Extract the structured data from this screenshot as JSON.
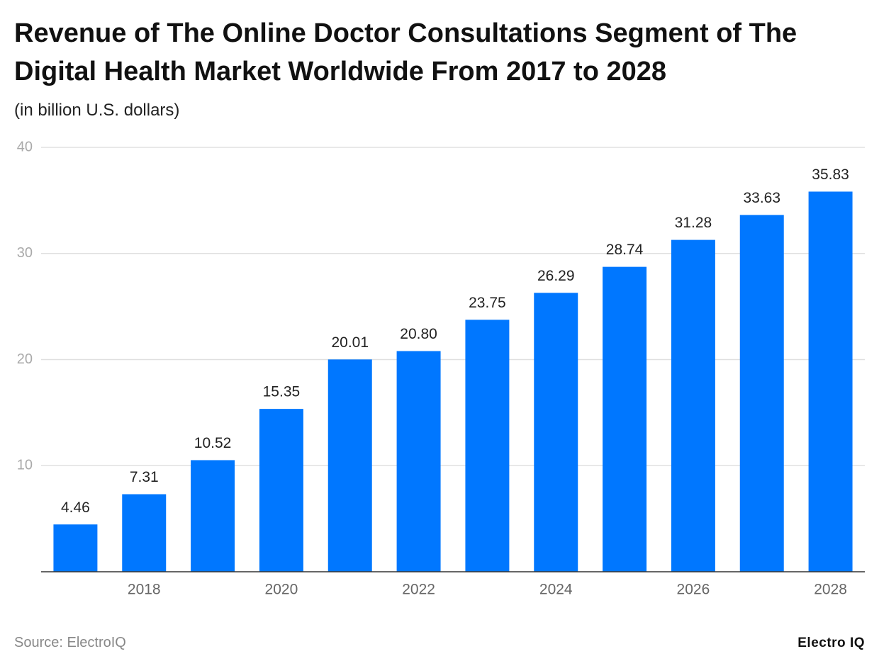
{
  "chart_data": {
    "type": "bar",
    "title": "Revenue of The Online Doctor Consultations Segment of The Digital Health Market Worldwide From 2017 to 2028",
    "subtitle": "(in billion U.S. dollars)",
    "categories": [
      null,
      "2018",
      null,
      "2020",
      null,
      "2022",
      null,
      "2024",
      null,
      "2026",
      null,
      "2028"
    ],
    "values": [
      4.46,
      7.31,
      10.52,
      15.35,
      20.01,
      20.8,
      23.75,
      26.29,
      28.74,
      31.28,
      33.63,
      35.83
    ],
    "value_labels": [
      "4.46",
      "7.31",
      "10.52",
      "15.35",
      "20.01",
      "20.80",
      "23.75",
      "26.29",
      "28.74",
      "31.28",
      "33.63",
      "35.83"
    ],
    "color": "#0077ff",
    "ylim": [
      0,
      40
    ],
    "yticks": [
      10,
      20,
      30,
      40
    ],
    "grid": true,
    "source": "Source: ElectroIQ",
    "brand": "Electro IQ"
  }
}
